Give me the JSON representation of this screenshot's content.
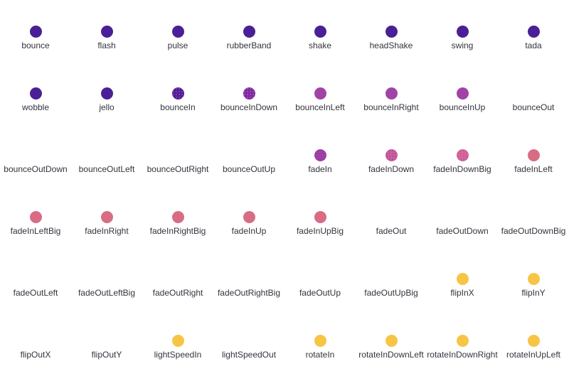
{
  "page": {
    "background": "#ffffff",
    "label_color": "#33333d"
  },
  "palette": {
    "indigo": "#4a2096",
    "purple": "#a143a6",
    "pink": "#d96c85",
    "yellow": "#f7c545"
  },
  "grid": {
    "columns": 8,
    "rows": 6
  },
  "animations": [
    {
      "label": "bounce",
      "dot": {
        "visible": true,
        "color": "#4a2096",
        "dithered": false
      }
    },
    {
      "label": "flash",
      "dot": {
        "visible": true,
        "color": "#4a2096",
        "dithered": false
      }
    },
    {
      "label": "pulse",
      "dot": {
        "visible": true,
        "color": "#4a2096",
        "dithered": false
      }
    },
    {
      "label": "rubberBand",
      "dot": {
        "visible": true,
        "color": "#4a2096",
        "dithered": false
      }
    },
    {
      "label": "shake",
      "dot": {
        "visible": true,
        "color": "#4a2096",
        "dithered": false
      }
    },
    {
      "label": "headShake",
      "dot": {
        "visible": true,
        "color": "#4a2096",
        "dithered": false
      }
    },
    {
      "label": "swing",
      "dot": {
        "visible": true,
        "color": "#4a2096",
        "dithered": false
      }
    },
    {
      "label": "tada",
      "dot": {
        "visible": true,
        "color": "#4a2096",
        "dithered": false
      }
    },
    {
      "label": "wobble",
      "dot": {
        "visible": true,
        "color": "#4a2096",
        "dithered": false
      }
    },
    {
      "label": "jello",
      "dot": {
        "visible": true,
        "color": "#4a2096",
        "dithered": false
      }
    },
    {
      "label": "bounceIn",
      "dot": {
        "visible": true,
        "color": "#4a2096",
        "dithered": true,
        "texture": "#a143a6"
      }
    },
    {
      "label": "bounceInDown",
      "dot": {
        "visible": true,
        "color": "#7b2ba0",
        "dithered": true,
        "texture": "#bb4cba"
      }
    },
    {
      "label": "bounceInLeft",
      "dot": {
        "visible": true,
        "color": "#a143a6",
        "dithered": false
      }
    },
    {
      "label": "bounceInRight",
      "dot": {
        "visible": true,
        "color": "#a143a6",
        "dithered": false
      }
    },
    {
      "label": "bounceInUp",
      "dot": {
        "visible": true,
        "color": "#a143a6",
        "dithered": false
      }
    },
    {
      "label": "bounceOut",
      "dot": {
        "visible": false,
        "color": "",
        "dithered": false
      }
    },
    {
      "label": "bounceOutDown",
      "dot": {
        "visible": false,
        "color": "",
        "dithered": false
      }
    },
    {
      "label": "bounceOutLeft",
      "dot": {
        "visible": false,
        "color": "",
        "dithered": false
      }
    },
    {
      "label": "bounceOutRight",
      "dot": {
        "visible": false,
        "color": "",
        "dithered": false
      }
    },
    {
      "label": "bounceOutUp",
      "dot": {
        "visible": false,
        "color": "",
        "dithered": false
      }
    },
    {
      "label": "fadeIn",
      "dot": {
        "visible": true,
        "color": "#a143a6",
        "dithered": true,
        "texture": "#8a35a2"
      }
    },
    {
      "label": "fadeInDown",
      "dot": {
        "visible": true,
        "color": "#cb5f9b",
        "dithered": true,
        "texture": "#a844a4"
      }
    },
    {
      "label": "fadeInDownBig",
      "dot": {
        "visible": true,
        "color": "#d4669a",
        "dithered": true,
        "texture": "#c15a9a"
      }
    },
    {
      "label": "fadeInLeft",
      "dot": {
        "visible": true,
        "color": "#d96c85",
        "dithered": false
      }
    },
    {
      "label": "fadeInLeftBig",
      "dot": {
        "visible": true,
        "color": "#d96c85",
        "dithered": false
      }
    },
    {
      "label": "fadeInRight",
      "dot": {
        "visible": true,
        "color": "#d96c85",
        "dithered": false
      }
    },
    {
      "label": "fadeInRightBig",
      "dot": {
        "visible": true,
        "color": "#d96c85",
        "dithered": false
      }
    },
    {
      "label": "fadeInUp",
      "dot": {
        "visible": true,
        "color": "#d96c85",
        "dithered": false
      }
    },
    {
      "label": "fadeInUpBig",
      "dot": {
        "visible": true,
        "color": "#d96c85",
        "dithered": false
      }
    },
    {
      "label": "fadeOut",
      "dot": {
        "visible": false,
        "color": "",
        "dithered": false
      }
    },
    {
      "label": "fadeOutDown",
      "dot": {
        "visible": false,
        "color": "",
        "dithered": false
      }
    },
    {
      "label": "fadeOutDownBig",
      "dot": {
        "visible": false,
        "color": "",
        "dithered": false
      }
    },
    {
      "label": "fadeOutLeft",
      "dot": {
        "visible": false,
        "color": "",
        "dithered": false
      }
    },
    {
      "label": "fadeOutLeftBig",
      "dot": {
        "visible": false,
        "color": "",
        "dithered": false
      }
    },
    {
      "label": "fadeOutRight",
      "dot": {
        "visible": false,
        "color": "",
        "dithered": false
      }
    },
    {
      "label": "fadeOutRightBig",
      "dot": {
        "visible": false,
        "color": "",
        "dithered": false
      }
    },
    {
      "label": "fadeOutUp",
      "dot": {
        "visible": false,
        "color": "",
        "dithered": false
      }
    },
    {
      "label": "fadeOutUpBig",
      "dot": {
        "visible": false,
        "color": "",
        "dithered": false
      }
    },
    {
      "label": "flipInX",
      "dot": {
        "visible": true,
        "color": "#f7c545",
        "dithered": false
      }
    },
    {
      "label": "flipInY",
      "dot": {
        "visible": true,
        "color": "#f7c545",
        "dithered": false
      }
    },
    {
      "label": "flipOutX",
      "dot": {
        "visible": false,
        "color": "",
        "dithered": false
      }
    },
    {
      "label": "flipOutY",
      "dot": {
        "visible": false,
        "color": "",
        "dithered": false
      }
    },
    {
      "label": "lightSpeedIn",
      "dot": {
        "visible": true,
        "color": "#f7c545",
        "dithered": false
      }
    },
    {
      "label": "lightSpeedOut",
      "dot": {
        "visible": false,
        "color": "",
        "dithered": false
      }
    },
    {
      "label": "rotateIn",
      "dot": {
        "visible": true,
        "color": "#f7c545",
        "dithered": false
      }
    },
    {
      "label": "rotateInDownLeft",
      "dot": {
        "visible": true,
        "color": "#f7c545",
        "dithered": false
      }
    },
    {
      "label": "rotateInDownRight",
      "dot": {
        "visible": true,
        "color": "#f7c545",
        "dithered": false
      }
    },
    {
      "label": "rotateInUpLeft",
      "dot": {
        "visible": true,
        "color": "#f7c545",
        "dithered": false
      }
    }
  ]
}
